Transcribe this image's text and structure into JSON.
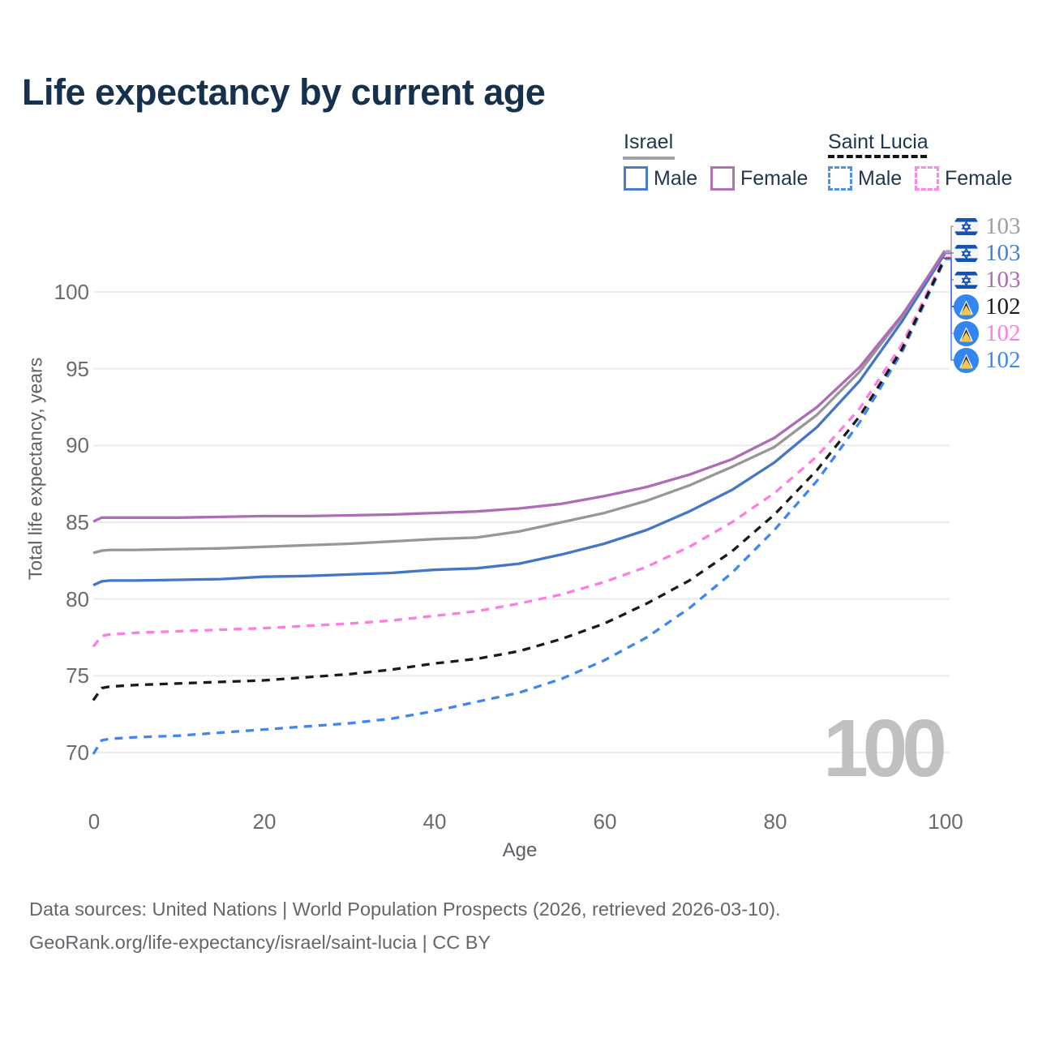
{
  "title": "Life expectancy by current age",
  "legend": {
    "groups": [
      {
        "label": "Israel",
        "line_style": "solid",
        "line_color": "#a3a3a3",
        "items": [
          {
            "label": "Male",
            "color": "#4a7dc9"
          },
          {
            "label": "Female",
            "color": "#b173b6"
          }
        ]
      },
      {
        "label": "Saint Lucia",
        "line_style": "dashed",
        "line_color": "#141414",
        "items": [
          {
            "label": "Male",
            "color": "#4a90f5"
          },
          {
            "label": "Female",
            "color": "#ff85e6"
          }
        ]
      }
    ]
  },
  "watermark": "100",
  "end_labels": [
    {
      "flag": "israel",
      "value": "103",
      "color": "#9e9e9e",
      "series_index": 4
    },
    {
      "flag": "israel",
      "value": "103",
      "color": "#4b7ec9",
      "series_index": 3
    },
    {
      "flag": "israel",
      "value": "103",
      "color": "#aa6db1",
      "series_index": 5
    },
    {
      "flag": "saint-lucia",
      "value": "102",
      "color": "#1b1b1b",
      "series_index": 2
    },
    {
      "flag": "saint-lucia",
      "value": "102",
      "color": "#ff7ce0",
      "series_index": 1
    },
    {
      "flag": "saint-lucia",
      "value": "102",
      "color": "#3f86f2",
      "series_index": 0
    }
  ],
  "footer": {
    "line1": "Data sources: United Nations | World Population Prospects (2026, retrieved 2026-03-10).",
    "line2": "GeoRank.org/life-expectancy/israel/saint-lucia | CC BY"
  },
  "chart_data": {
    "type": "line",
    "title": "Life expectancy by current age",
    "xlabel": "Age",
    "ylabel": "Total life expectancy, years",
    "xlim": [
      0,
      100
    ],
    "ylim": [
      68,
      104
    ],
    "grid": true,
    "legend_position": "top-right",
    "xticks": [
      0,
      20,
      40,
      60,
      80,
      100
    ],
    "yticks": [
      100,
      95,
      90,
      85,
      80,
      75,
      70
    ],
    "x": [
      0,
      1,
      2,
      5,
      10,
      15,
      20,
      25,
      30,
      35,
      40,
      45,
      50,
      55,
      60,
      65,
      70,
      75,
      80,
      85,
      90,
      95,
      100
    ],
    "series": [
      {
        "name": "Saint Lucia Male",
        "country": "Saint Lucia",
        "sex": "Male",
        "color": "#3f86f2",
        "dash": true,
        "end_label": "102",
        "values": [
          69.9,
          70.8,
          70.9,
          71.0,
          71.1,
          71.3,
          71.5,
          71.7,
          71.9,
          72.2,
          72.7,
          73.3,
          73.9,
          74.8,
          76.0,
          77.5,
          79.4,
          81.7,
          84.5,
          87.7,
          91.5,
          96.1,
          102.1
        ]
      },
      {
        "name": "Saint Lucia Female",
        "country": "Saint Lucia",
        "sex": "Female",
        "color": "#ff7de1",
        "dash": true,
        "end_label": "102",
        "values": [
          76.9,
          77.6,
          77.7,
          77.8,
          77.9,
          78.0,
          78.1,
          78.25,
          78.4,
          78.6,
          78.9,
          79.2,
          79.7,
          80.3,
          81.1,
          82.1,
          83.4,
          85.0,
          86.9,
          89.3,
          92.4,
          96.6,
          102.3
        ]
      },
      {
        "name": "Saint Lucia",
        "country": "Saint Lucia",
        "sex": "Both",
        "color": "#1a1a1a",
        "dash": true,
        "end_label": "102",
        "values": [
          73.4,
          74.2,
          74.3,
          74.4,
          74.5,
          74.6,
          74.7,
          74.9,
          75.1,
          75.4,
          75.8,
          76.1,
          76.6,
          77.4,
          78.4,
          79.7,
          81.2,
          83.1,
          85.5,
          88.4,
          91.9,
          96.3,
          102.2
        ]
      },
      {
        "name": "Israel Male",
        "country": "Israel",
        "sex": "Male",
        "color": "#4377c6",
        "dash": false,
        "end_label": "103",
        "values": [
          80.9,
          81.15,
          81.2,
          81.2,
          81.25,
          81.3,
          81.45,
          81.5,
          81.6,
          81.7,
          81.9,
          82.0,
          82.3,
          82.9,
          83.6,
          84.5,
          85.7,
          87.1,
          88.9,
          91.2,
          94.2,
          98.1,
          102.5
        ]
      },
      {
        "name": "Israel",
        "country": "Israel",
        "sex": "Both",
        "color": "#979797",
        "dash": false,
        "end_label": "103",
        "values": [
          83.0,
          83.15,
          83.2,
          83.2,
          83.25,
          83.3,
          83.4,
          83.5,
          83.6,
          83.75,
          83.9,
          84.0,
          84.4,
          85.0,
          85.6,
          86.4,
          87.4,
          88.6,
          89.9,
          92.0,
          94.8,
          98.4,
          102.7
        ]
      },
      {
        "name": "Israel Female",
        "country": "Israel",
        "sex": "Female",
        "color": "#ad6cb5",
        "dash": false,
        "end_label": "103",
        "values": [
          85.05,
          85.3,
          85.3,
          85.3,
          85.3,
          85.35,
          85.4,
          85.4,
          85.45,
          85.5,
          85.6,
          85.7,
          85.9,
          86.2,
          86.7,
          87.3,
          88.1,
          89.1,
          90.5,
          92.5,
          95.1,
          98.5,
          102.6
        ]
      }
    ]
  }
}
